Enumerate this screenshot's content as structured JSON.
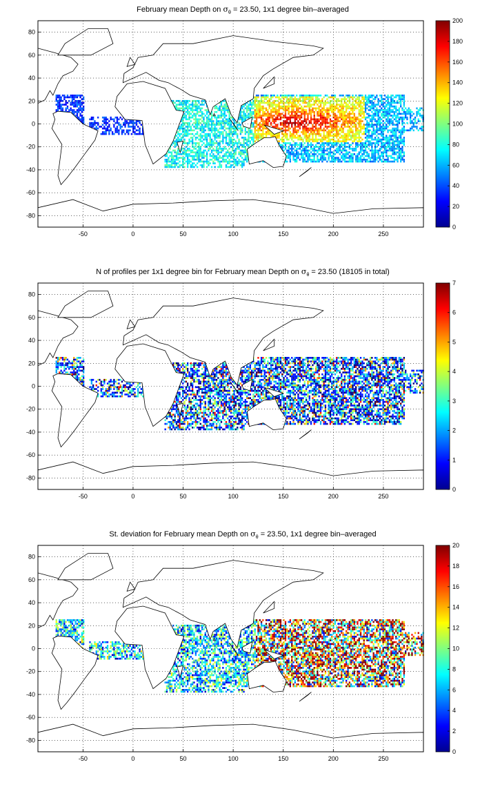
{
  "figure": {
    "background": "#ffffff",
    "axis_color": "#000000",
    "coast_color": "#000000",
    "grid_color": "#000000"
  },
  "chart_data": [
    {
      "type": "heatmap",
      "title": "February mean Depth on σθ = 23.50, 1x1 degree bin–averaged",
      "title_parts": {
        "before": "February mean Depth on ",
        "sigma": "σ",
        "sub": "θ",
        "after": " = 23.50, 1x1 degree bin–averaged"
      },
      "xlim": [
        -95,
        290
      ],
      "ylim": [
        -90,
        90
      ],
      "xticks": [
        -50,
        0,
        50,
        100,
        150,
        200,
        250
      ],
      "yticks": [
        -80,
        -60,
        -40,
        -20,
        0,
        20,
        40,
        60,
        80
      ],
      "grid": true,
      "colormap": "jet",
      "clim": [
        0,
        200
      ],
      "colorbar_ticks": [
        0,
        20,
        40,
        60,
        80,
        100,
        120,
        140,
        160,
        180,
        200
      ],
      "field": "depth"
    },
    {
      "type": "heatmap",
      "title": "N of profiles per 1x1 degree bin for February mean Depth on σθ = 23.50 (18105 in total)",
      "title_parts": {
        "before": "N of profiles per 1x1 degree bin for February mean Depth on ",
        "sigma": "σ",
        "sub": "θ",
        "after": " = 23.50 (18105 in total)"
      },
      "xlim": [
        -95,
        290
      ],
      "ylim": [
        -90,
        90
      ],
      "xticks": [
        -50,
        0,
        50,
        100,
        150,
        200,
        250
      ],
      "yticks": [
        -80,
        -60,
        -40,
        -20,
        0,
        20,
        40,
        60,
        80
      ],
      "grid": true,
      "colormap": "jet",
      "clim": [
        0,
        7
      ],
      "colorbar_ticks": [
        0,
        1,
        2,
        3,
        4,
        5,
        6,
        7
      ],
      "field": "count"
    },
    {
      "type": "heatmap",
      "title": "St. deviation for February mean Depth on σθ = 23.50, 1x1 degree bin–averaged",
      "title_parts": {
        "before": "St. deviation for February mean Depth on ",
        "sigma": "σ",
        "sub": "θ",
        "after": " = 23.50, 1x1 degree bin–averaged"
      },
      "xlim": [
        -95,
        290
      ],
      "ylim": [
        -90,
        90
      ],
      "xticks": [
        -50,
        0,
        50,
        100,
        150,
        200,
        250
      ],
      "yticks": [
        -80,
        -60,
        -40,
        -20,
        0,
        20,
        40,
        60,
        80
      ],
      "grid": true,
      "colormap": "jet",
      "clim": [
        0,
        20
      ],
      "colorbar_ticks": [
        0,
        2,
        4,
        6,
        8,
        10,
        12,
        14,
        16,
        18,
        20
      ],
      "field": "std"
    }
  ]
}
